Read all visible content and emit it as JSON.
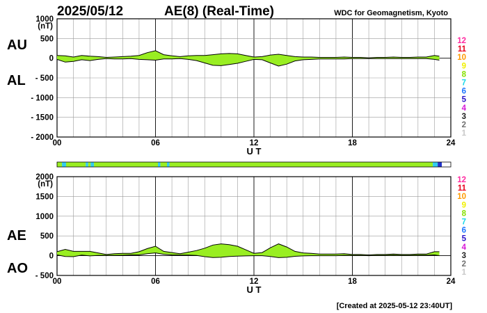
{
  "header": {
    "date": "2025/05/12",
    "title": "AE(8)  (Real-Time)",
    "source": "WDC for Geomagnetism, Kyoto"
  },
  "footer": {
    "created": "[Created at 2025-05-12 23:40UT]"
  },
  "stations_legend": {
    "values": [
      "12",
      "11",
      "10",
      "9",
      "8",
      "7",
      "6",
      "5",
      "4",
      "3",
      "2",
      "1"
    ],
    "colors": [
      "#ff2aa0",
      "#e8001c",
      "#ff9a00",
      "#f0f000",
      "#86e000",
      "#18d8e8",
      "#1b74ff",
      "#2a10c8",
      "#d818d8",
      "#202020",
      "#707070",
      "#c8c8c8"
    ]
  },
  "colors": {
    "fill": "#99ee22",
    "axis": "#000000",
    "grid": "#9a9a9a"
  },
  "coverage_bar": {
    "segments": [
      {
        "from": 0.0,
        "to": 0.3,
        "color": "#99ee22"
      },
      {
        "from": 0.3,
        "to": 0.55,
        "color": "#33ccee"
      },
      {
        "from": 0.55,
        "to": 1.75,
        "color": "#99ee22"
      },
      {
        "from": 1.75,
        "to": 1.9,
        "color": "#33ccee"
      },
      {
        "from": 1.9,
        "to": 2.05,
        "color": "#99ee22"
      },
      {
        "from": 2.05,
        "to": 2.25,
        "color": "#33ccee"
      },
      {
        "from": 2.25,
        "to": 6.15,
        "color": "#99ee22"
      },
      {
        "from": 6.15,
        "to": 6.3,
        "color": "#33ccee"
      },
      {
        "from": 6.3,
        "to": 6.7,
        "color": "#99ee22"
      },
      {
        "from": 6.7,
        "to": 6.85,
        "color": "#33ccee"
      },
      {
        "from": 6.85,
        "to": 22.9,
        "color": "#99ee22"
      },
      {
        "from": 22.9,
        "to": 23.2,
        "color": "#33ccee"
      },
      {
        "from": 23.2,
        "to": 23.45,
        "color": "#2233cc"
      },
      {
        "from": 23.45,
        "to": 24.0,
        "color": "#ffffff"
      }
    ]
  },
  "chart_data": [
    {
      "type": "area",
      "panel": "AU/AL",
      "label_upper": "AU",
      "label_lower": "AL",
      "unit": "(nT)",
      "xlabel": "U T",
      "ylim": [
        -2000,
        1000
      ],
      "yticks": [
        1000,
        500,
        0,
        -500,
        -1000,
        -1500,
        -2000
      ],
      "ytick_labels": [
        "1000",
        "500",
        "0",
        "- 500",
        "- 1000",
        "- 1500",
        "- 2000"
      ],
      "xlim": [
        0,
        24
      ],
      "xticks": [
        0,
        6,
        12,
        18,
        24
      ],
      "xtick_labels": [
        "00",
        "06",
        "12",
        "18",
        "24"
      ],
      "grid": true,
      "x": [
        0,
        0.5,
        1,
        1.5,
        2,
        2.5,
        3,
        3.5,
        4,
        4.5,
        5,
        5.5,
        6,
        6.5,
        7,
        7.5,
        8,
        8.5,
        9,
        9.5,
        10,
        10.5,
        11,
        11.5,
        12,
        12.5,
        13,
        13.5,
        14,
        14.5,
        15,
        15.5,
        16,
        16.5,
        17,
        17.5,
        18,
        18.5,
        19,
        19.5,
        20,
        20.5,
        21,
        21.5,
        22,
        22.5,
        23,
        23.3
      ],
      "series": [
        {
          "name": "AU",
          "values": [
            70,
            60,
            30,
            70,
            50,
            40,
            20,
            30,
            40,
            50,
            70,
            140,
            190,
            90,
            60,
            40,
            60,
            70,
            70,
            90,
            110,
            120,
            110,
            70,
            30,
            40,
            80,
            100,
            70,
            40,
            30,
            30,
            20,
            20,
            20,
            30,
            20,
            20,
            10,
            20,
            20,
            30,
            20,
            20,
            30,
            30,
            70,
            50
          ]
        },
        {
          "name": "AL",
          "values": [
            -30,
            -100,
            -80,
            -40,
            -60,
            -30,
            -10,
            -20,
            -20,
            -10,
            -30,
            -40,
            -50,
            -20,
            -20,
            -10,
            -30,
            -60,
            -120,
            -180,
            -190,
            -160,
            -130,
            -80,
            -30,
            -40,
            -120,
            -200,
            -150,
            -70,
            -40,
            -30,
            -20,
            -20,
            -20,
            -20,
            -10,
            -10,
            -10,
            -10,
            -10,
            -10,
            -10,
            -10,
            -10,
            -10,
            -30,
            -50
          ]
        }
      ]
    },
    {
      "type": "area",
      "panel": "AE/AO",
      "label_upper": "AE",
      "label_lower": "AO",
      "unit": "(nT)",
      "xlabel": "U T",
      "ylim": [
        -500,
        2000
      ],
      "yticks": [
        2000,
        1500,
        1000,
        500,
        0,
        -500
      ],
      "ytick_labels": [
        "2000",
        "1500",
        "1000",
        "500",
        "0",
        "- 500"
      ],
      "xlim": [
        0,
        24
      ],
      "xticks": [
        0,
        6,
        12,
        18,
        24
      ],
      "xtick_labels": [
        "00",
        "06",
        "12",
        "18",
        "24"
      ],
      "grid": true,
      "x": [
        0,
        0.5,
        1,
        1.5,
        2,
        2.5,
        3,
        3.5,
        4,
        4.5,
        5,
        5.5,
        6,
        6.5,
        7,
        7.5,
        8,
        8.5,
        9,
        9.5,
        10,
        10.5,
        11,
        11.5,
        12,
        12.5,
        13,
        13.5,
        14,
        14.5,
        15,
        15.5,
        16,
        16.5,
        17,
        17.5,
        18,
        18.5,
        19,
        19.5,
        20,
        20.5,
        21,
        21.5,
        22,
        22.5,
        23,
        23.3
      ],
      "series": [
        {
          "name": "AE",
          "values": [
            100,
            160,
            110,
            110,
            110,
            70,
            30,
            50,
            60,
            60,
            100,
            180,
            240,
            110,
            80,
            50,
            90,
            130,
            190,
            270,
            300,
            280,
            240,
            150,
            60,
            80,
            200,
            300,
            220,
            110,
            70,
            60,
            40,
            40,
            40,
            50,
            30,
            30,
            20,
            30,
            30,
            40,
            30,
            30,
            40,
            40,
            100,
            100
          ]
        },
        {
          "name": "AO",
          "values": [
            20,
            -20,
            -25,
            15,
            -5,
            5,
            5,
            5,
            10,
            20,
            20,
            50,
            70,
            35,
            20,
            15,
            15,
            5,
            -25,
            -45,
            -40,
            -20,
            -10,
            -5,
            0,
            0,
            -20,
            -50,
            -40,
            -15,
            -5,
            0,
            0,
            0,
            0,
            5,
            5,
            5,
            0,
            5,
            5,
            10,
            5,
            5,
            10,
            10,
            20,
            0
          ]
        }
      ]
    }
  ]
}
